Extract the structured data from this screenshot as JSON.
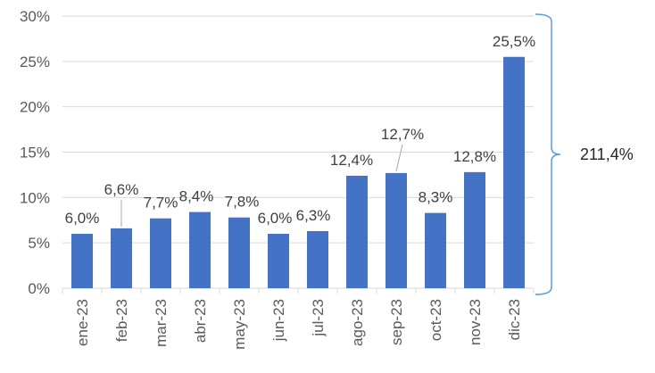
{
  "chart_data": {
    "type": "bar",
    "categories": [
      "ene-23",
      "feb-23",
      "mar-23",
      "abr-23",
      "may-23",
      "jun-23",
      "jul-23",
      "ago-23",
      "sep-23",
      "oct-23",
      "nov-23",
      "dic-23"
    ],
    "values": [
      6.0,
      6.6,
      7.7,
      8.4,
      7.8,
      6.0,
      6.3,
      12.4,
      12.7,
      8.3,
      12.8,
      25.5
    ],
    "data_labels": [
      "6,0%",
      "6,6%",
      "7,7%",
      "8,4%",
      "7,8%",
      "6,0%",
      "6,3%",
      "12,4%",
      "12,7%",
      "8,3%",
      "12,8%",
      "25,5%"
    ],
    "y_ticks": [
      0,
      5,
      10,
      15,
      20,
      25,
      30
    ],
    "y_tick_labels": [
      "0%",
      "5%",
      "10%",
      "15%",
      "20%",
      "25%",
      "30%"
    ],
    "ylim": [
      0,
      30
    ],
    "grid": true,
    "bar_color": "#4472c4",
    "annotation": {
      "text": "211,4%",
      "type": "brace",
      "spans": "full y-axis range"
    },
    "title": "",
    "xlabel": "",
    "ylabel": ""
  }
}
